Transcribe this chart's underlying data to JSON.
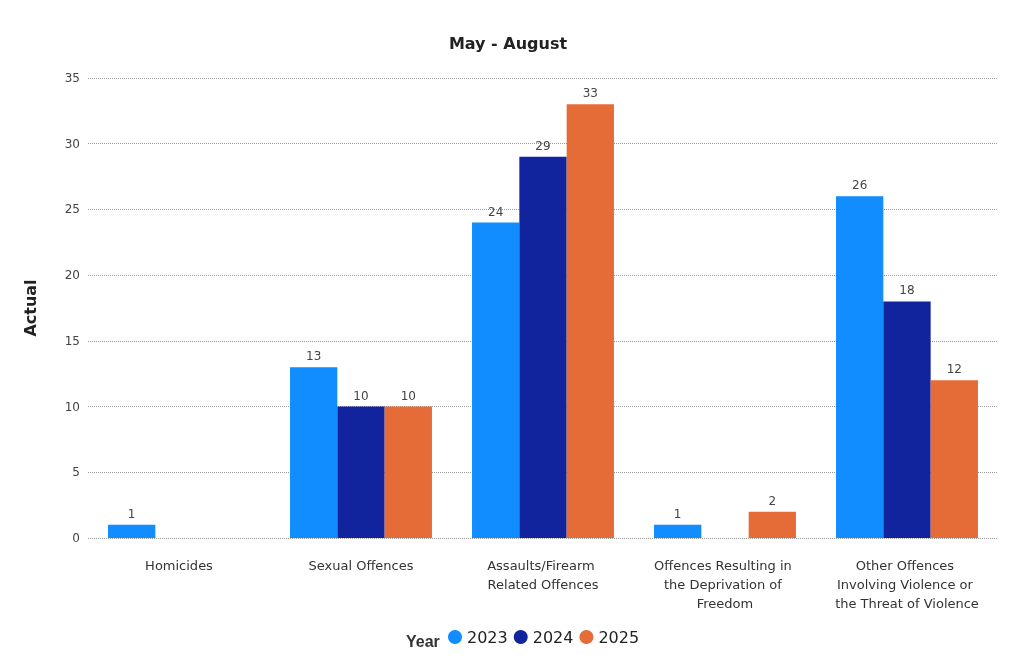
{
  "chart_data": {
    "type": "bar",
    "title": "May - August",
    "ylabel": "Actual",
    "legend_title": "Year",
    "categories": [
      "Homicides",
      "Sexual Offences",
      "Assaults/Firearm Related Offences",
      "Offences Resulting in the Deprivation of Freedom",
      "Other Offences Involving Violence or the Threat of Violence"
    ],
    "series": [
      {
        "name": "2023",
        "color": "#118dff",
        "values": [
          1,
          13,
          24,
          1,
          26
        ]
      },
      {
        "name": "2024",
        "color": "#12239e",
        "values": [
          null,
          10,
          29,
          null,
          18
        ]
      },
      {
        "name": "2025",
        "color": "#e66c37",
        "values": [
          null,
          10,
          33,
          2,
          12
        ]
      }
    ],
    "ylim": [
      0,
      35
    ],
    "yticks": [
      0,
      5,
      10,
      15,
      20,
      25,
      30,
      35
    ],
    "grid": "y",
    "legend": "bottom",
    "data_labels": true
  }
}
